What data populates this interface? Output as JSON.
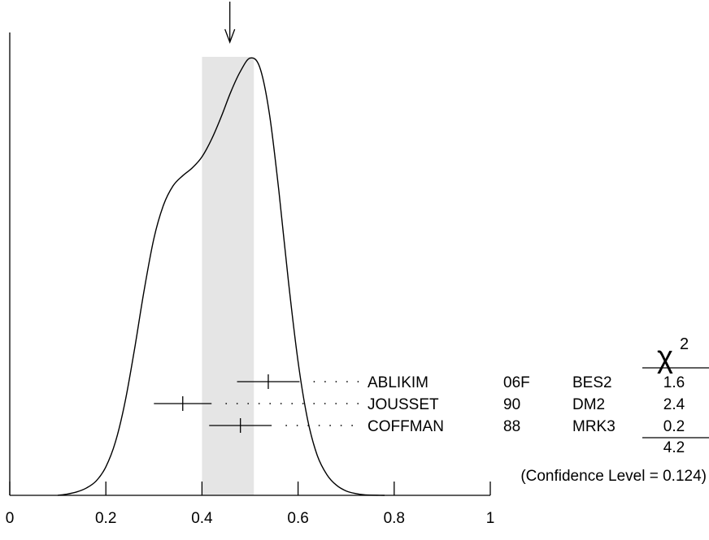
{
  "chart_data": {
    "type": "ideogram",
    "xlim": [
      0,
      1
    ],
    "x_ticks": [
      {
        "value": 0,
        "label": "0"
      },
      {
        "value": 0.2,
        "label": "0.2"
      },
      {
        "value": 0.4,
        "label": "0.4"
      },
      {
        "value": 0.6,
        "label": "0.6"
      },
      {
        "value": 0.8,
        "label": "0.8"
      },
      {
        "value": 1,
        "label": "1"
      }
    ],
    "average_marker": 0.458,
    "band": [
      0.4,
      0.508
    ],
    "curve": [
      [
        0.1,
        0.0
      ],
      [
        0.12,
        0.003
      ],
      [
        0.14,
        0.008
      ],
      [
        0.16,
        0.017
      ],
      [
        0.18,
        0.033
      ],
      [
        0.2,
        0.065
      ],
      [
        0.22,
        0.122
      ],
      [
        0.24,
        0.213
      ],
      [
        0.26,
        0.336
      ],
      [
        0.28,
        0.47
      ],
      [
        0.3,
        0.586
      ],
      [
        0.32,
        0.662
      ],
      [
        0.34,
        0.706
      ],
      [
        0.36,
        0.729
      ],
      [
        0.38,
        0.747
      ],
      [
        0.4,
        0.772
      ],
      [
        0.42,
        0.812
      ],
      [
        0.44,
        0.863
      ],
      [
        0.46,
        0.92
      ],
      [
        0.48,
        0.967
      ],
      [
        0.5,
        0.997
      ],
      [
        0.52,
        0.977
      ],
      [
        0.54,
        0.873
      ],
      [
        0.56,
        0.694
      ],
      [
        0.58,
        0.487
      ],
      [
        0.6,
        0.305
      ],
      [
        0.62,
        0.172
      ],
      [
        0.64,
        0.091
      ],
      [
        0.66,
        0.047
      ],
      [
        0.68,
        0.023
      ],
      [
        0.7,
        0.01
      ],
      [
        0.72,
        0.004
      ],
      [
        0.74,
        0.001
      ],
      [
        0.78,
        0.0
      ]
    ],
    "measurements": [
      {
        "value": 0.538,
        "error": 0.065,
        "author": "ABLIKIM",
        "year": "06F",
        "experiment": "BES2",
        "chi2": "1.6",
        "underline_chi2": false
      },
      {
        "value": 0.36,
        "error": 0.06,
        "author": "JOUSSET",
        "year": "90",
        "experiment": "DM2",
        "chi2": "2.4",
        "underline_chi2": false
      },
      {
        "value": 0.48,
        "error": 0.065,
        "author": "COFFMAN",
        "year": "88",
        "experiment": "MRK3",
        "chi2": "0.2",
        "underline_chi2": true
      }
    ],
    "chi2_header": "χ",
    "chi2_header_sup": "2",
    "chi2_total": "4.2",
    "confidence_level_text": "(Confidence Level = 0.124)"
  }
}
